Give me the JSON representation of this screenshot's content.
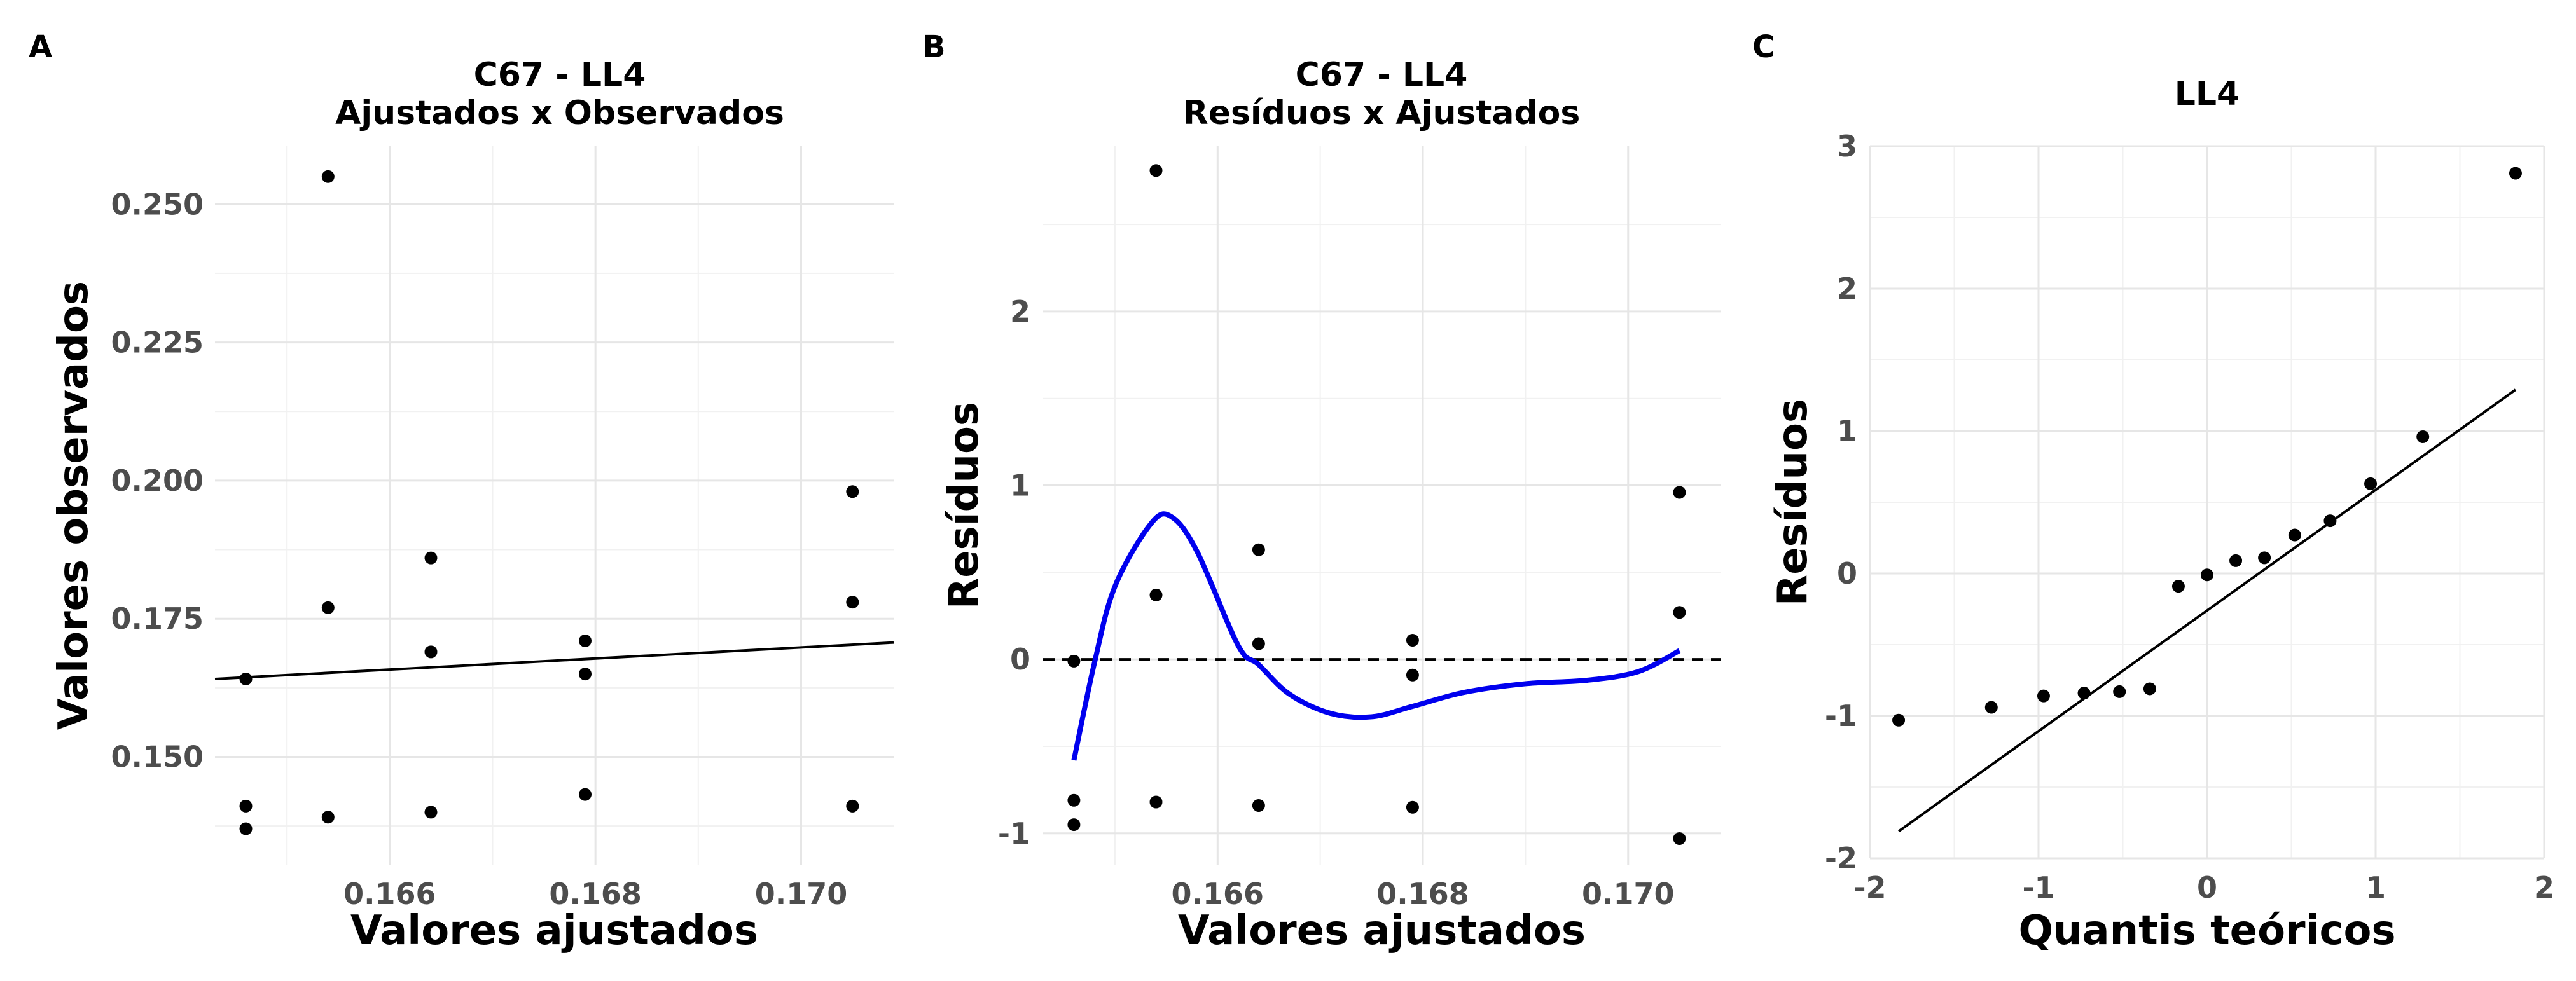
{
  "chart_data": [
    {
      "tag": "A",
      "type": "scatter",
      "title": "C67 - LL4",
      "subtitle": "Ajustados x Observados",
      "xlabel": "Valores ajustados",
      "ylabel": "Valores observados",
      "xlim": [
        0.1643,
        0.1709
      ],
      "ylim": [
        0.1305,
        0.2605
      ],
      "xticks": [
        0.166,
        0.168,
        0.17
      ],
      "xtick_labels": [
        "0.166",
        "0.168",
        "0.170"
      ],
      "yticks": [
        0.15,
        0.175,
        0.2,
        0.225,
        0.25
      ],
      "ytick_labels": [
        "0.150",
        "0.175",
        "0.200",
        "0.225",
        "0.250"
      ],
      "grid": true,
      "points": [
        {
          "x": 0.1646,
          "y": 0.137
        },
        {
          "x": 0.1646,
          "y": 0.1411
        },
        {
          "x": 0.1646,
          "y": 0.1641
        },
        {
          "x": 0.1654,
          "y": 0.1391
        },
        {
          "x": 0.1654,
          "y": 0.177
        },
        {
          "x": 0.1654,
          "y": 0.255
        },
        {
          "x": 0.1664,
          "y": 0.14
        },
        {
          "x": 0.1664,
          "y": 0.169
        },
        {
          "x": 0.1664,
          "y": 0.186
        },
        {
          "x": 0.1679,
          "y": 0.1432
        },
        {
          "x": 0.1679,
          "y": 0.165
        },
        {
          "x": 0.1679,
          "y": 0.171
        },
        {
          "x": 0.1705,
          "y": 0.1411
        },
        {
          "x": 0.1705,
          "y": 0.178
        },
        {
          "x": 0.1705,
          "y": 0.198
        }
      ],
      "line": {
        "x": [
          0.1643,
          0.1709
        ],
        "y": [
          0.1641,
          0.1707
        ],
        "color": "#000000"
      }
    },
    {
      "tag": "B",
      "type": "scatter",
      "title": "C67 - LL4",
      "subtitle": "Resíduos x Ajustados",
      "xlabel": "Valores ajustados",
      "ylabel": "Resíduos",
      "xlim": [
        0.1643,
        0.1709
      ],
      "ylim": [
        -1.18,
        2.95
      ],
      "xticks": [
        0.166,
        0.168,
        0.17
      ],
      "xtick_labels": [
        "0.166",
        "0.168",
        "0.170"
      ],
      "yticks": [
        -1,
        0,
        1,
        2
      ],
      "ytick_labels": [
        "-1",
        "0",
        "1",
        "2"
      ],
      "grid": true,
      "points": [
        {
          "x": 0.1646,
          "y": -0.95
        },
        {
          "x": 0.1646,
          "y": -0.81
        },
        {
          "x": 0.1646,
          "y": -0.01
        },
        {
          "x": 0.1654,
          "y": -0.82
        },
        {
          "x": 0.1654,
          "y": 0.37
        },
        {
          "x": 0.1654,
          "y": 2.81
        },
        {
          "x": 0.1664,
          "y": -0.84
        },
        {
          "x": 0.1664,
          "y": 0.09
        },
        {
          "x": 0.1664,
          "y": 0.63
        },
        {
          "x": 0.1679,
          "y": -0.85
        },
        {
          "x": 0.1679,
          "y": -0.09
        },
        {
          "x": 0.1679,
          "y": 0.11
        },
        {
          "x": 0.1705,
          "y": -1.03
        },
        {
          "x": 0.1705,
          "y": 0.27
        },
        {
          "x": 0.1705,
          "y": 0.96
        }
      ],
      "reference_line": {
        "y": 0,
        "style": "dashed",
        "color": "#000000"
      },
      "smooth": {
        "color": "#0000ee",
        "x": [
          0.1646,
          0.1648,
          0.165,
          0.16535,
          0.16555,
          0.1658,
          0.1662,
          0.1664,
          0.1667,
          0.1671,
          0.1675,
          0.1679,
          0.1684,
          0.169,
          0.1696,
          0.1701,
          0.1705
        ],
        "y": [
          -0.58,
          -0.02,
          0.42,
          0.78,
          0.82,
          0.62,
          0.08,
          -0.03,
          -0.2,
          -0.31,
          -0.33,
          -0.27,
          -0.19,
          -0.14,
          -0.12,
          -0.07,
          0.05
        ]
      }
    },
    {
      "tag": "C",
      "type": "scatter",
      "title": "LL4",
      "xlabel": "Quantis teóricos",
      "ylabel": "Resíduos",
      "xlim": [
        -2,
        2
      ],
      "ylim": [
        -2,
        3
      ],
      "xticks": [
        -2,
        -1,
        0,
        1,
        2
      ],
      "xtick_labels": [
        "-2",
        "-1",
        "0",
        "1",
        "2"
      ],
      "yticks": [
        -2,
        -1,
        0,
        1,
        2,
        3
      ],
      "ytick_labels": [
        "-2",
        "-1",
        "0",
        "1",
        "2",
        "3"
      ],
      "grid": true,
      "points": [
        {
          "x": -1.83,
          "y": -1.03
        },
        {
          "x": -1.28,
          "y": -0.94
        },
        {
          "x": -0.97,
          "y": -0.86
        },
        {
          "x": -0.73,
          "y": -0.84
        },
        {
          "x": -0.52,
          "y": -0.83
        },
        {
          "x": -0.34,
          "y": -0.81
        },
        {
          "x": -0.17,
          "y": -0.09
        },
        {
          "x": 0.0,
          "y": -0.01
        },
        {
          "x": 0.17,
          "y": 0.09
        },
        {
          "x": 0.34,
          "y": 0.11
        },
        {
          "x": 0.52,
          "y": 0.27
        },
        {
          "x": 0.73,
          "y": 0.37
        },
        {
          "x": 0.97,
          "y": 0.63
        },
        {
          "x": 1.28,
          "y": 0.96
        },
        {
          "x": 1.83,
          "y": 2.81
        }
      ],
      "line": {
        "x": [
          -1.83,
          1.83
        ],
        "y": [
          -1.81,
          1.29
        ],
        "color": "#000000"
      }
    }
  ]
}
